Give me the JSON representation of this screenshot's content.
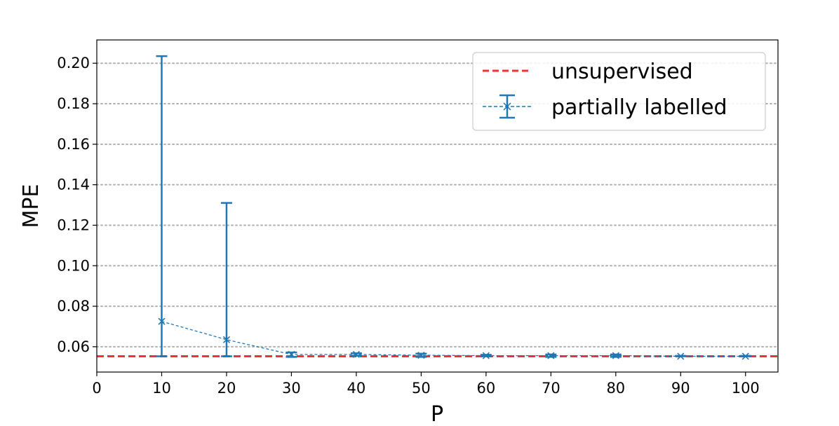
{
  "chart_data": {
    "type": "line",
    "xlabel": "P",
    "ylabel": "MPE",
    "xlim": [
      0,
      105
    ],
    "ylim": [
      0.0475,
      0.2115
    ],
    "xticks": [
      0,
      10,
      20,
      30,
      40,
      50,
      60,
      70,
      80,
      90,
      100
    ],
    "yticks": [
      0.06,
      0.08,
      0.1,
      0.12,
      0.14,
      0.16,
      0.18,
      0.2
    ],
    "ytick_labels": [
      "0.06",
      "0.08",
      "0.10",
      "0.12",
      "0.14",
      "0.16",
      "0.18",
      "0.20"
    ],
    "grid": "horizontal dotted",
    "legend_position": "top-right",
    "reference_line": {
      "name": "unsupervised",
      "y": 0.0553,
      "color": "#ee3333",
      "style": "dashed"
    },
    "series": [
      {
        "name": "partially labelled",
        "color": "#1f77b4",
        "marker": "x",
        "line_style": "dashed",
        "x": [
          10,
          20,
          30,
          40,
          50,
          60,
          70,
          80,
          90,
          100
        ],
        "y": [
          0.0725,
          0.0635,
          0.0562,
          0.0562,
          0.0558,
          0.0556,
          0.0556,
          0.0556,
          0.0553,
          0.0553
        ],
        "error_low": [
          0.0553,
          0.0553,
          0.055,
          0.0556,
          0.055,
          0.0553,
          0.055,
          0.055,
          0.0553,
          0.0553
        ],
        "error_high": [
          0.2035,
          0.131,
          0.0572,
          0.0568,
          0.0566,
          0.056,
          0.0562,
          0.0562,
          0.0555,
          0.0555
        ]
      }
    ]
  }
}
